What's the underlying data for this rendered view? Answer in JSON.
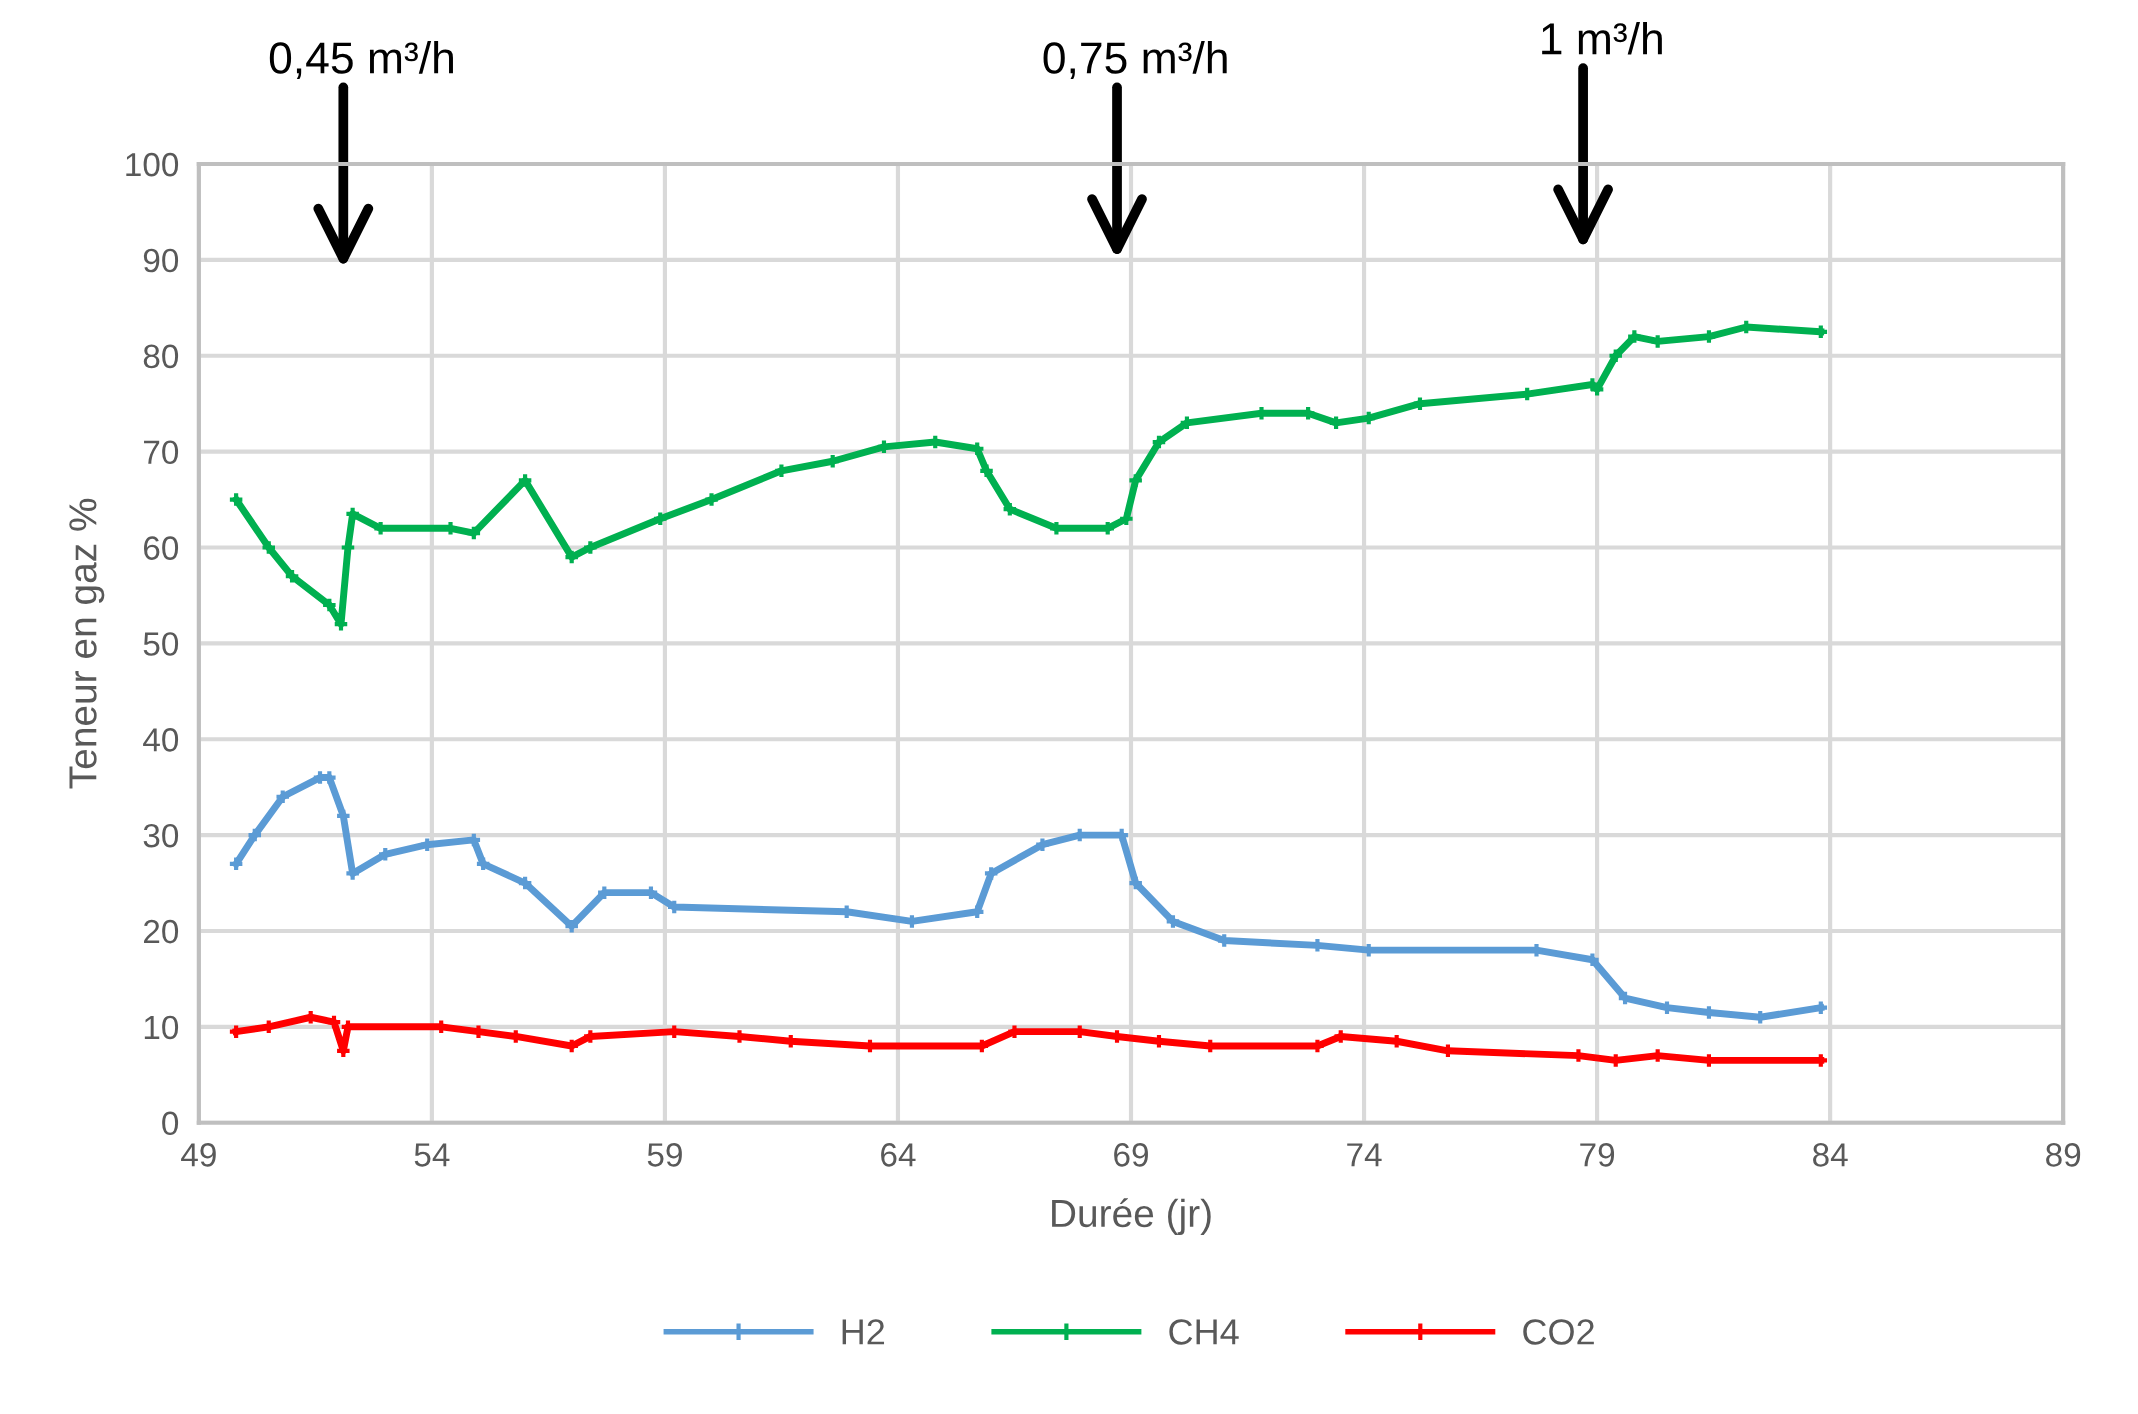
{
  "chart_data": {
    "type": "line",
    "xlabel": "Durée (jr)",
    "ylabel": "Teneur en gaz %",
    "xlim": [
      49,
      89
    ],
    "xticks": [
      49,
      54,
      59,
      64,
      69,
      74,
      79,
      84,
      89
    ],
    "ylim": [
      0,
      100
    ],
    "yticks": [
      0,
      10,
      20,
      30,
      40,
      50,
      60,
      70,
      80,
      90,
      100
    ],
    "grid": true,
    "legend": "bottom",
    "marker": "cross",
    "line_style": "solid",
    "series": [
      {
        "name": "H2",
        "color": "#5b9bd5",
        "x": [
          49.8,
          50.2,
          50.8,
          51.6,
          51.8,
          52.1,
          52.3,
          53.0,
          53.9,
          54.9,
          55.1,
          56.0,
          57.0,
          57.7,
          58.7,
          59.2,
          62.9,
          64.3,
          65.7,
          66.0,
          67.1,
          67.9,
          68.8,
          69.1,
          69.9,
          71.0,
          73.0,
          74.1,
          77.7,
          78.9,
          79.6,
          80.5,
          81.4,
          82.5,
          83.8
        ],
        "values": [
          27,
          30,
          34,
          36,
          36,
          32,
          26,
          28,
          29,
          29.5,
          27,
          25,
          20.5,
          24,
          24,
          22.5,
          22,
          21,
          22,
          26,
          29,
          30,
          30,
          25,
          21,
          19,
          18.5,
          18,
          18,
          17,
          13,
          12,
          11.5,
          11,
          12
        ]
      },
      {
        "name": "CH4",
        "color": "#00b050",
        "x": [
          49.8,
          50.5,
          51.0,
          51.8,
          52.05,
          52.2,
          52.3,
          52.9,
          54.4,
          54.9,
          56.0,
          57.0,
          57.4,
          58.9,
          60.0,
          61.5,
          62.6,
          63.7,
          64.8,
          65.7,
          65.9,
          66.4,
          67.4,
          68.5,
          68.9,
          69.1,
          69.6,
          70.2,
          71.8,
          72.8,
          73.4,
          74.1,
          75.2,
          77.5,
          78.9,
          79.0,
          79.4,
          79.8,
          80.3,
          81.4,
          82.2,
          83.8
        ],
        "values": [
          65,
          60,
          57,
          54,
          52,
          60,
          63.5,
          62,
          62,
          61.5,
          67,
          59,
          60,
          63,
          65,
          68,
          69,
          70.5,
          71,
          70.3,
          68,
          64,
          62,
          62,
          63,
          67,
          71,
          73,
          74,
          74,
          73,
          73.5,
          75,
          76,
          77,
          76.5,
          80,
          82,
          81.5,
          82,
          83,
          82.5
        ]
      },
      {
        "name": "CO2",
        "color": "#ff0000",
        "x": [
          49.8,
          50.5,
          51.4,
          51.9,
          52.1,
          52.2,
          54.2,
          55.0,
          55.8,
          57.0,
          57.4,
          59.2,
          60.6,
          61.7,
          63.4,
          65.8,
          66.5,
          67.9,
          68.7,
          69.6,
          70.7,
          73.0,
          73.5,
          74.7,
          75.8,
          78.6,
          79.4,
          80.3,
          81.4,
          83.8
        ],
        "values": [
          9.5,
          10,
          11,
          10.5,
          7.5,
          10,
          10,
          9.5,
          9,
          8,
          9,
          9.5,
          9,
          8.5,
          8,
          8,
          9.5,
          9.5,
          9,
          8.5,
          8,
          8,
          9,
          8.5,
          7.5,
          7,
          6.5,
          7,
          6.5,
          6.5
        ]
      }
    ],
    "annotations": [
      "0,45 m³/h",
      "0,75 m³/h",
      "1 m³/h"
    ]
  }
}
